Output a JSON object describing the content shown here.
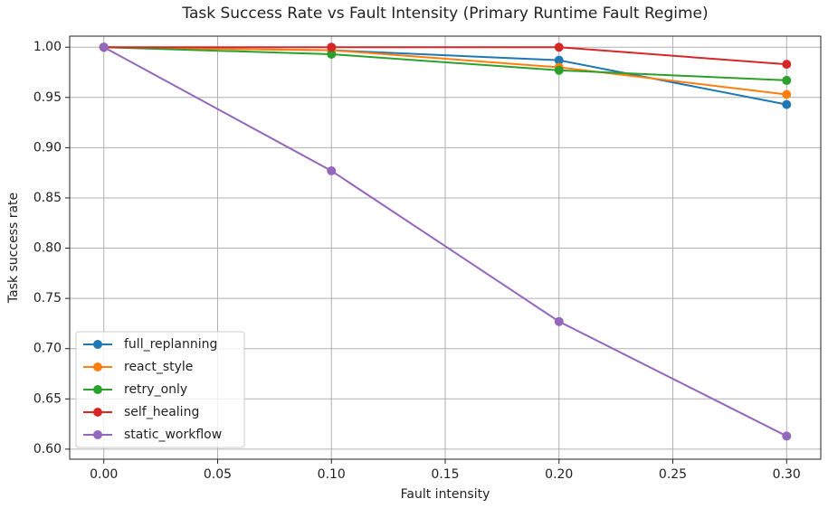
{
  "chart_data": {
    "type": "line",
    "title": "Task Success Rate vs Fault Intensity (Primary Runtime Fault Regime)",
    "x_label": "Fault intensity",
    "y_label": "Task success rate",
    "x": [
      0.0,
      0.1,
      0.2,
      0.3
    ],
    "series": [
      {
        "name": "full_replanning",
        "color": "#1f77b4",
        "values": [
          1.0,
          0.997,
          0.987,
          0.943
        ]
      },
      {
        "name": "react_style",
        "color": "#ff7f0e",
        "values": [
          1.0,
          0.997,
          0.98,
          0.953
        ]
      },
      {
        "name": "retry_only",
        "color": "#2ca02c",
        "values": [
          1.0,
          0.993,
          0.977,
          0.967
        ]
      },
      {
        "name": "self_healing",
        "color": "#d62728",
        "values": [
          1.0,
          1.0,
          1.0,
          0.983
        ]
      },
      {
        "name": "static_workflow",
        "color": "#9467bd",
        "values": [
          1.0,
          0.877,
          0.727,
          0.613
        ]
      }
    ],
    "xlim": [
      -0.015,
      0.315
    ],
    "ylim": [
      0.59,
      1.011
    ],
    "xticks": [
      {
        "value": 0,
        "label": "0.00"
      },
      {
        "value": 0.05,
        "label": "0.05"
      },
      {
        "value": 0.1,
        "label": "0.10"
      },
      {
        "value": 0.15,
        "label": "0.15"
      },
      {
        "value": 0.2,
        "label": "0.20"
      },
      {
        "value": 0.25,
        "label": "0.25"
      },
      {
        "value": 0.3,
        "label": "0.30"
      }
    ],
    "yticks": [
      {
        "value": 0.6,
        "label": "0.60"
      },
      {
        "value": 0.65,
        "label": "0.65"
      },
      {
        "value": 0.7,
        "label": "0.70"
      },
      {
        "value": 0.75,
        "label": "0.75"
      },
      {
        "value": 0.8,
        "label": "0.80"
      },
      {
        "value": 0.85,
        "label": "0.85"
      },
      {
        "value": 0.9,
        "label": "0.90"
      },
      {
        "value": 0.95,
        "label": "0.95"
      },
      {
        "value": 1.0,
        "label": "1.00"
      }
    ],
    "grid": true,
    "legend": "lower left"
  }
}
